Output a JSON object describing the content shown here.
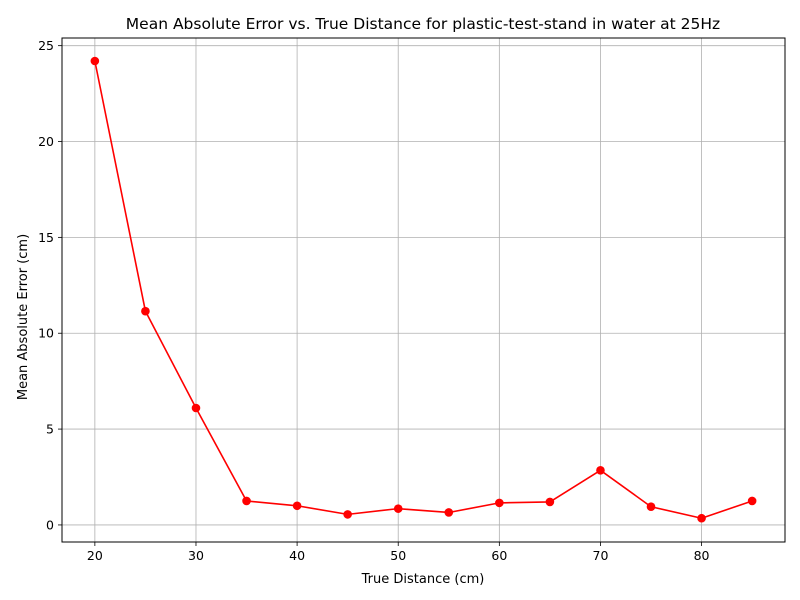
{
  "chart_data": {
    "type": "line",
    "title": "Mean Absolute Error vs. True Distance for plastic-test-stand in water at 25Hz",
    "xlabel": "True Distance (cm)",
    "ylabel": "Mean Absolute Error (cm)",
    "x": [
      20,
      25,
      30,
      35,
      40,
      45,
      50,
      55,
      60,
      65,
      70,
      75,
      80,
      85
    ],
    "series": [
      {
        "values": [
          24.2,
          11.15,
          6.1,
          1.25,
          1.0,
          0.55,
          0.85,
          0.65,
          1.15,
          1.2,
          2.85,
          0.95,
          0.35,
          1.25
        ],
        "color": "#ff0000",
        "marker": "circle"
      }
    ],
    "xlim": [
      16.75,
      88.25
    ],
    "ylim": [
      -0.89,
      25.4
    ],
    "xticks": [
      20,
      30,
      40,
      50,
      60,
      70,
      80
    ],
    "yticks": [
      0,
      5,
      10,
      15,
      20,
      25
    ],
    "xtick_labels": [
      "20",
      "30",
      "40",
      "50",
      "60",
      "70",
      "80"
    ],
    "ytick_labels": [
      "0",
      "5",
      "10",
      "15",
      "20",
      "25"
    ],
    "grid": true
  }
}
